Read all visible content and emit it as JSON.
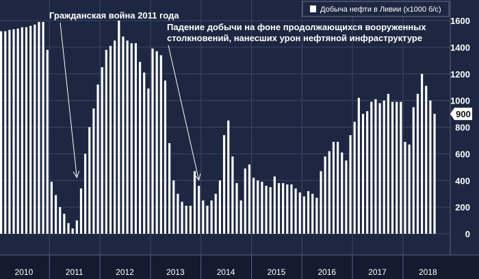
{
  "chart_data": {
    "type": "bar",
    "legend": {
      "label": "Добыча нефти в Ливии (x1000 б/с)",
      "position": "top-right"
    },
    "ylim": [
      -50,
      1650
    ],
    "yticks": [
      0,
      200,
      400,
      600,
      800,
      1000,
      1200,
      1400,
      1600
    ],
    "ytick_labels": [
      "0",
      "200",
      "400",
      "600",
      "800",
      "1000",
      "1200",
      "1400",
      "1600"
    ],
    "years": [
      "2010",
      "2011",
      "2012",
      "2013",
      "2014",
      "2015",
      "2016",
      "2017",
      "2018"
    ],
    "grid": true,
    "series": [
      {
        "values": [
          1520,
          1520,
          1530,
          1535,
          1540,
          1550,
          1550,
          1560,
          1570,
          1590,
          1590,
          1380,
          390,
          290,
          200,
          150,
          80,
          40,
          100,
          340,
          600,
          800,
          940,
          1120,
          1250,
          1380,
          1410,
          1450,
          1600,
          1480,
          1450,
          1430,
          1430,
          1290,
          1210,
          1090,
          1390,
          1370,
          1340,
          1150,
          680,
          400,
          300,
          240,
          210,
          210,
          470,
          360,
          250,
          210,
          250,
          300,
          400,
          740,
          850,
          580,
          380,
          250,
          490,
          520,
          420,
          400,
          390,
          360,
          350,
          430,
          380,
          380,
          370,
          370,
          340,
          310,
          280,
          320,
          300,
          270,
          470,
          580,
          620,
          690,
          690,
          610,
          550,
          740,
          840,
          1020,
          900,
          920,
          990,
          1010,
          980,
          1000,
          1050,
          990,
          990,
          990,
          690,
          670,
          950,
          1050,
          1200,
          1110,
          1000,
          900
        ],
        "color": "#ffffff"
      }
    ],
    "last_value_label": "900",
    "annotations": [
      {
        "text": "Гражданская война 2011 года",
        "target_index": 18,
        "target_value": 330
      },
      {
        "text": "Падение добычи на фоне продолжающихся вооруженных",
        "text2": "столкновений, нанесших урон нефтяной инфраструктуре",
        "target_index": 47,
        "target_value": 310
      }
    ]
  },
  "colors": {
    "background": "#1e2741",
    "grid": "#3c4766",
    "bar": "#ffffff",
    "axis_band": "#141b30"
  }
}
